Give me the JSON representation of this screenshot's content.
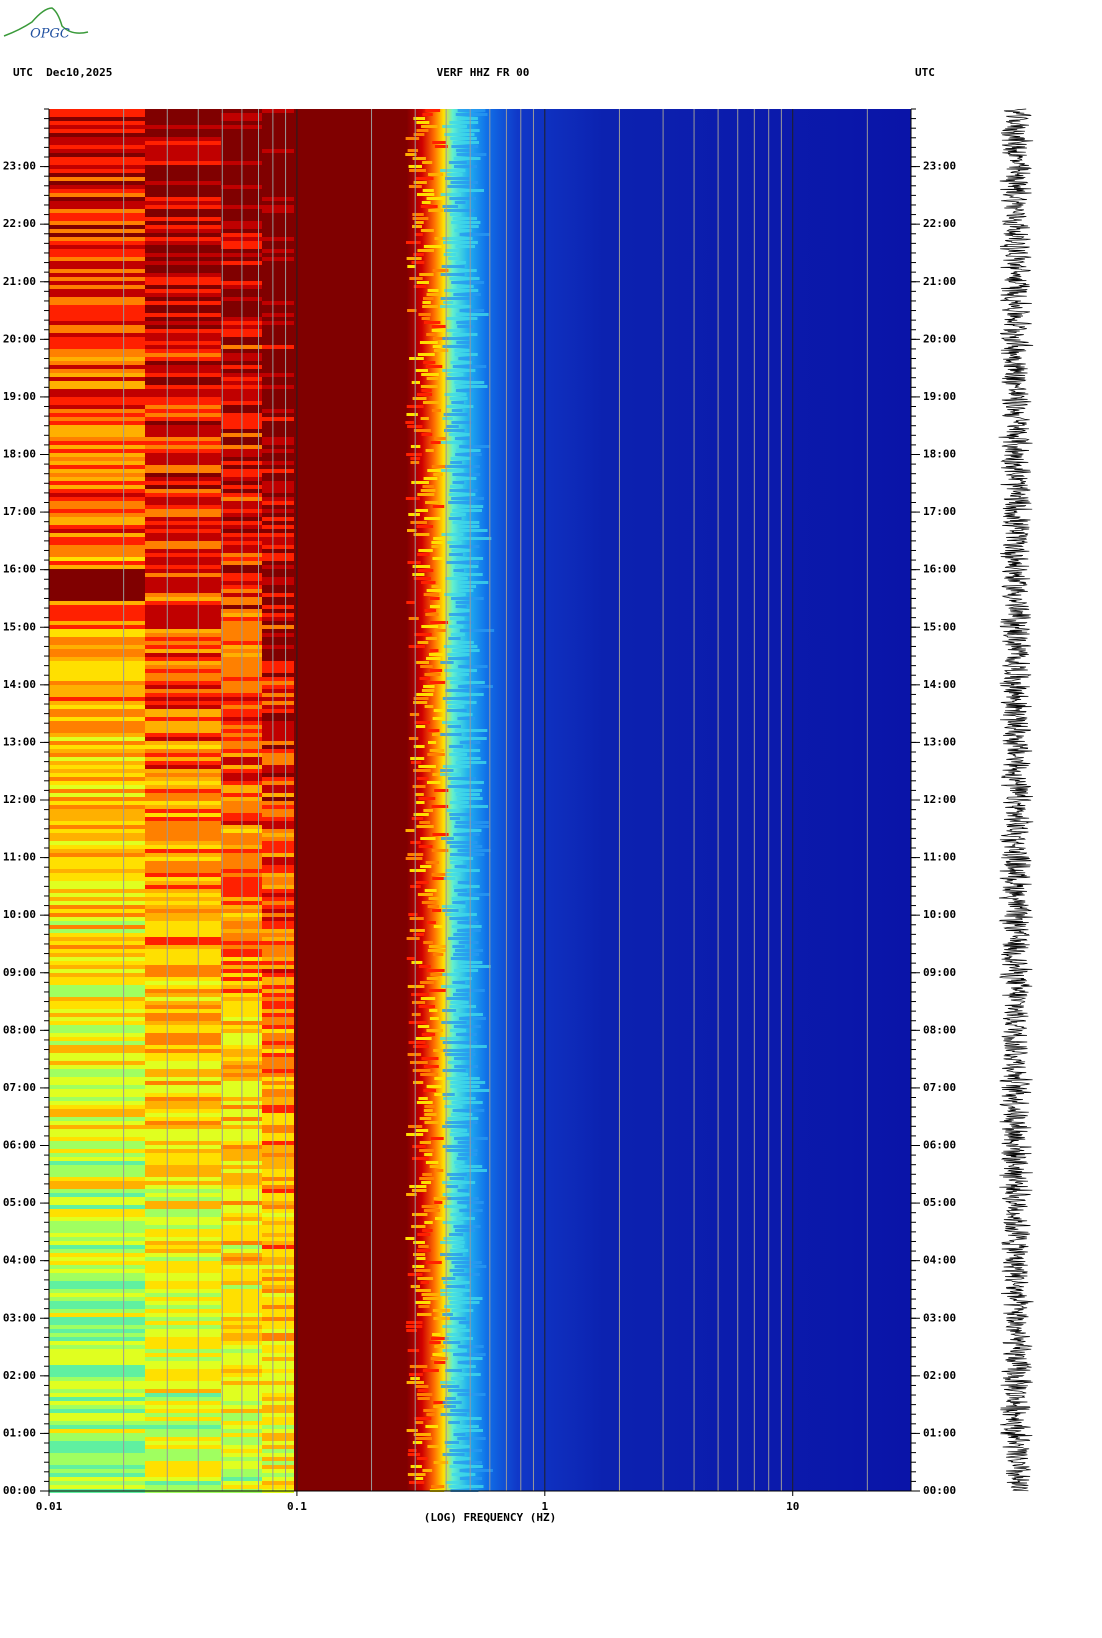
{
  "logo": "OPGC",
  "chart_data": {
    "type": "spectrogram",
    "header_left": "UTC  Dec10,2025",
    "title": "VERF HHZ FR 00",
    "header_right": "UTC",
    "xlabel": "(LOG) FREQUENCY (HZ)",
    "xscale": "log",
    "xlim": [
      0.01,
      30
    ],
    "xticks": [
      0.01,
      0.1,
      1,
      10
    ],
    "ylim": [
      0,
      24
    ],
    "yticks": [
      {
        "value": 0,
        "label": "00:00"
      },
      {
        "value": 1,
        "label": "01:00"
      },
      {
        "value": 2,
        "label": "02:00"
      },
      {
        "value": 3,
        "label": "03:00"
      },
      {
        "value": 4,
        "label": "04:00"
      },
      {
        "value": 5,
        "label": "05:00"
      },
      {
        "value": 6,
        "label": "06:00"
      },
      {
        "value": 7,
        "label": "07:00"
      },
      {
        "value": 8,
        "label": "08:00"
      },
      {
        "value": 9,
        "label": "09:00"
      },
      {
        "value": 10,
        "label": "10:00"
      },
      {
        "value": 11,
        "label": "11:00"
      },
      {
        "value": 12,
        "label": "12:00"
      },
      {
        "value": 13,
        "label": "13:00"
      },
      {
        "value": 14,
        "label": "14:00"
      },
      {
        "value": 15,
        "label": "15:00"
      },
      {
        "value": 16,
        "label": "16:00"
      },
      {
        "value": 17,
        "label": "17:00"
      },
      {
        "value": 18,
        "label": "18:00"
      },
      {
        "value": 19,
        "label": "19:00"
      },
      {
        "value": 20,
        "label": "20:00"
      },
      {
        "value": 21,
        "label": "21:00"
      },
      {
        "value": 22,
        "label": "22:00"
      },
      {
        "value": 23,
        "label": "23:00"
      }
    ]
  }
}
